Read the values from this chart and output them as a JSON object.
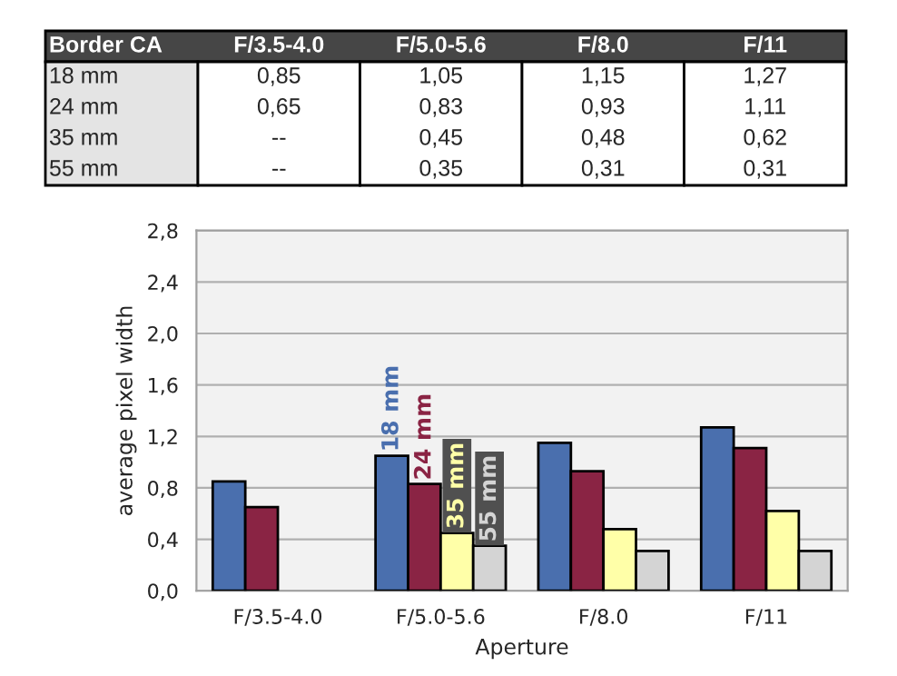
{
  "chart_data": {
    "type": "bar",
    "legend_title": "Border CA",
    "xlabel": "Aperture",
    "ylabel": "average pixel width",
    "categories": [
      "F/3.5-4.0",
      "F/5.0-5.6",
      "F/8.0",
      "F/11"
    ],
    "series": [
      {
        "name": "18 mm",
        "color": "#4a6fae",
        "values": [
          0.85,
          1.05,
          1.15,
          1.27
        ],
        "value_labels": [
          "0,85",
          "1,05",
          "1,15",
          "1,27"
        ]
      },
      {
        "name": "24 mm",
        "color": "#8a2444",
        "values": [
          0.65,
          0.83,
          0.93,
          1.11
        ],
        "value_labels": [
          "0,65",
          "0,83",
          "0,93",
          "1,11"
        ]
      },
      {
        "name": "35 mm",
        "color": "#ffffa8",
        "values": [
          null,
          0.45,
          0.48,
          0.62
        ],
        "value_labels": [
          "--",
          "0,45",
          "0,48",
          "0,62"
        ]
      },
      {
        "name": "55 mm",
        "color": "#d4d4d4",
        "values": [
          null,
          0.35,
          0.31,
          0.31
        ],
        "value_labels": [
          "--",
          "0,35",
          "0,31",
          "0,31"
        ]
      }
    ],
    "ylim": [
      0,
      2.8
    ],
    "yticks": [
      {
        "value": 0,
        "label": "0,0"
      },
      {
        "value": 0.4,
        "label": "0,4"
      },
      {
        "value": 0.8,
        "label": "0,8"
      },
      {
        "value": 1.2,
        "label": "1,2"
      },
      {
        "value": 1.6,
        "label": "1,6"
      },
      {
        "value": 2.0,
        "label": "2,0"
      },
      {
        "value": 2.4,
        "label": "2,4"
      },
      {
        "value": 2.8,
        "label": "2,8"
      }
    ],
    "grid": "y",
    "legend": false
  }
}
